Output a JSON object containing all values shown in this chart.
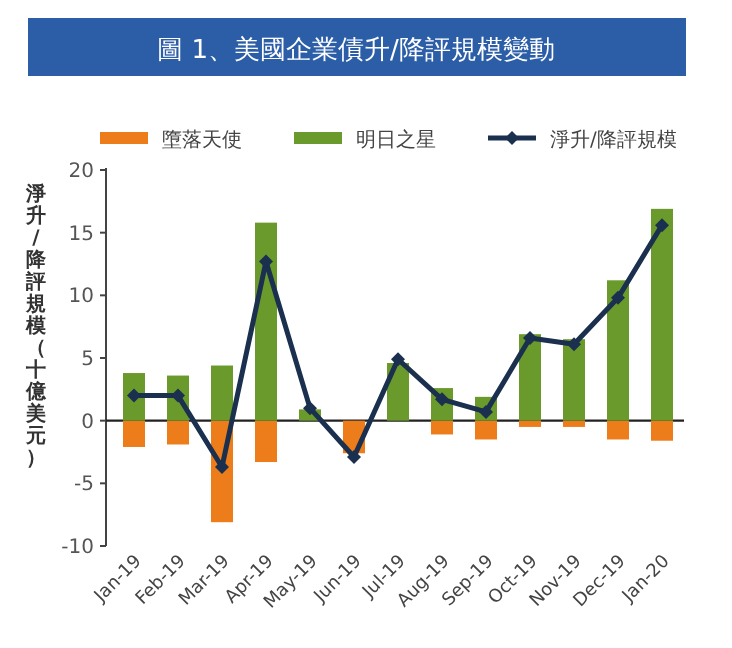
{
  "chart_data": {
    "type": "bar",
    "title": "圖 1、美國企業債升/降評規模變動",
    "ylabel": "淨升/降評規模（十億美元）",
    "categories": [
      "Jan-19",
      "Feb-19",
      "Mar-19",
      "Apr-19",
      "May-19",
      "Jun-19",
      "Jul-19",
      "Aug-19",
      "Sep-19",
      "Oct-19",
      "Nov-19",
      "Dec-19",
      "Jan-20"
    ],
    "stacked": true,
    "legend": "top",
    "marker": "diamond",
    "ylim": [
      -10,
      20
    ],
    "yticks": [
      -10,
      -5,
      0,
      5,
      10,
      15,
      20
    ],
    "series": [
      {
        "name": "墮落天使",
        "type": "bar",
        "color": "#ed7d1b",
        "values": [
          -2.1,
          -1.9,
          -8.1,
          -3.3,
          null,
          -2.6,
          null,
          -1.1,
          -1.5,
          -0.5,
          -0.5,
          -1.5,
          -1.6
        ]
      },
      {
        "name": "明日之星",
        "type": "bar",
        "color": "#6a9a2c",
        "values": [
          3.8,
          3.6,
          4.4,
          15.8,
          0.9,
          null,
          4.6,
          2.6,
          1.9,
          6.9,
          6.5,
          11.2,
          16.9
        ]
      },
      {
        "name": "淨升/降評規模",
        "type": "line",
        "color": "#1b2f4e",
        "values": [
          2.0,
          2.0,
          -3.7,
          12.7,
          1.0,
          -2.9,
          4.9,
          1.7,
          0.7,
          6.6,
          6.1,
          9.8,
          15.6
        ]
      }
    ]
  }
}
